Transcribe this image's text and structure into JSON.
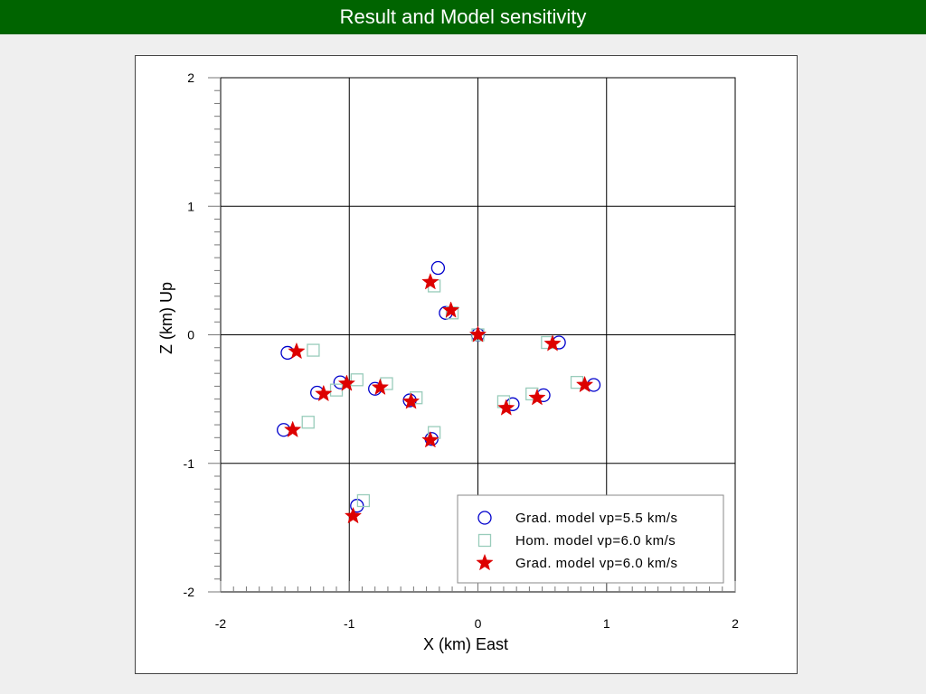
{
  "header": {
    "title": "Result and Model sensitivity"
  },
  "chart_data": {
    "type": "scatter",
    "title": "",
    "xlabel": "X (km)  East",
    "ylabel": "Z (km)  Up",
    "xlim": [
      -2,
      2
    ],
    "ylim": [
      -2,
      2
    ],
    "xticks": [
      -2,
      -1,
      0,
      1,
      2
    ],
    "yticks": [
      -2,
      -1,
      0,
      1,
      2
    ],
    "grid": true,
    "legend_position": "bottom-right",
    "series": [
      {
        "name": "Grad. model vp=5.5 km/s",
        "marker": "circle",
        "color": "#0000cc",
        "points": [
          [
            -0.31,
            0.52
          ],
          [
            -0.25,
            0.17
          ],
          [
            0.0,
            0.0
          ],
          [
            0.63,
            -0.06
          ],
          [
            -1.48,
            -0.14
          ],
          [
            -1.07,
            -0.37
          ],
          [
            -1.25,
            -0.45
          ],
          [
            -0.8,
            -0.42
          ],
          [
            -0.53,
            -0.51
          ],
          [
            -0.36,
            -0.81
          ],
          [
            0.27,
            -0.54
          ],
          [
            0.51,
            -0.47
          ],
          [
            0.9,
            -0.39
          ],
          [
            -1.51,
            -0.74
          ],
          [
            -0.94,
            -1.33
          ]
        ]
      },
      {
        "name": "Hom. model vp=6.0 km/s",
        "marker": "square",
        "color": "#99ccbb",
        "points": [
          [
            -0.34,
            0.38
          ],
          [
            -0.2,
            0.17
          ],
          [
            0.0,
            0.0
          ],
          [
            0.54,
            -0.06
          ],
          [
            -1.28,
            -0.12
          ],
          [
            -0.94,
            -0.35
          ],
          [
            -0.71,
            -0.38
          ],
          [
            -1.1,
            -0.43
          ],
          [
            -0.48,
            -0.49
          ],
          [
            -0.34,
            -0.76
          ],
          [
            0.2,
            -0.52
          ],
          [
            0.42,
            -0.46
          ],
          [
            0.77,
            -0.37
          ],
          [
            -1.32,
            -0.68
          ],
          [
            -0.89,
            -1.29
          ]
        ]
      },
      {
        "name": "Grad. model vp=6.0 km/s",
        "marker": "star",
        "color": "#dd0000",
        "points": [
          [
            -0.37,
            0.41
          ],
          [
            -0.21,
            0.19
          ],
          [
            0.0,
            0.0
          ],
          [
            0.58,
            -0.07
          ],
          [
            -1.41,
            -0.13
          ],
          [
            -1.02,
            -0.38
          ],
          [
            -1.2,
            -0.46
          ],
          [
            -0.76,
            -0.41
          ],
          [
            -0.52,
            -0.52
          ],
          [
            -0.37,
            -0.82
          ],
          [
            0.22,
            -0.57
          ],
          [
            0.46,
            -0.49
          ],
          [
            0.83,
            -0.39
          ],
          [
            -1.44,
            -0.74
          ],
          [
            -0.97,
            -1.41
          ]
        ]
      }
    ]
  }
}
